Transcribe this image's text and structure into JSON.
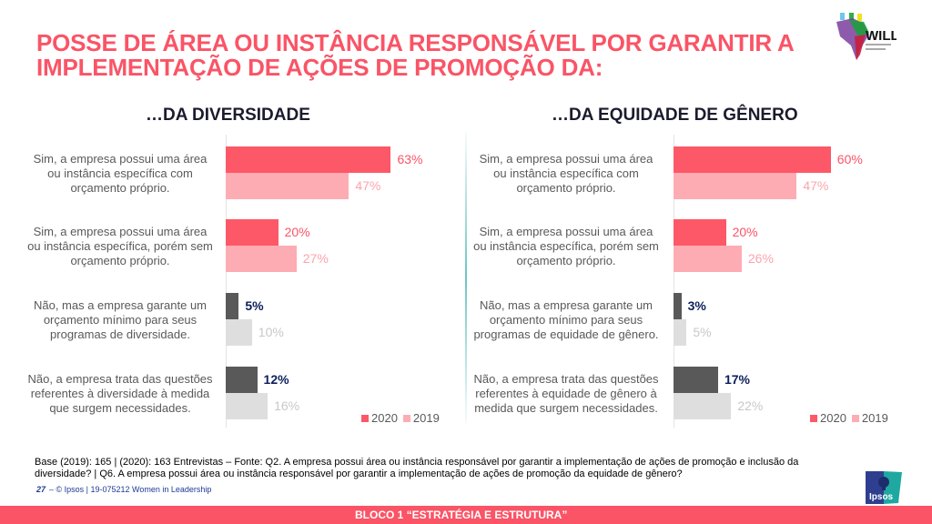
{
  "header": {
    "title_line1": "POSSE DE ÁREA OU INSTÂNCIA RESPONSÁVEL POR GARANTIR A",
    "title_line2": "IMPLEMENTAÇÃO DE AÇÕES DE PROMOÇÃO DA:",
    "logo_text": "WILL"
  },
  "colors": {
    "accent": "#fa5466",
    "bar_2020_pos": "#fd5867",
    "bar_2019_pos": "#feacb3",
    "bar_2020_neg": "#595959",
    "bar_2019_neg": "#dedede",
    "label_2020_pos": "#fa5466",
    "label_2019_pos": "#fca3ad",
    "label_2020_neg": "#0d1f5c",
    "label_2019_neg": "#c8c8c8"
  },
  "chart_data": [
    {
      "type": "bar",
      "orientation": "horizontal",
      "title": "…DA DIVERSIDADE",
      "categories": [
        "Sim, a empresa possui uma área ou instância específica com orçamento próprio.",
        "Sim, a empresa possui uma área ou instância específica, porém sem orçamento próprio.",
        "Não, mas a empresa garante um orçamento mínimo para seus programas de diversidade.",
        "Não, a empresa trata das questões referentes à diversidade à medida que surgem necessidades."
      ],
      "category_lines": [
        [
          "Sim, a empresa possui uma área",
          "ou instância específica com",
          "orçamento próprio."
        ],
        [
          "Sim, a empresa possui uma área",
          "ou instância específica, porém sem",
          "orçamento próprio."
        ],
        [
          "Não, mas a empresa garante um",
          "orçamento mínimo para seus",
          "programas de diversidade."
        ],
        [
          "Não, a empresa trata das questões",
          "referentes à diversidade à medida",
          "que surgem necessidades."
        ]
      ],
      "series": [
        {
          "name": "2020",
          "values": [
            63,
            20,
            5,
            12
          ],
          "labels": [
            "63%",
            "20%",
            "5%",
            "12%"
          ]
        },
        {
          "name": "2019",
          "values": [
            47,
            27,
            10,
            16
          ],
          "labels": [
            "47%",
            "27%",
            "10%",
            "16%"
          ]
        }
      ],
      "xlim": [
        0,
        100
      ],
      "legend": [
        "2020",
        "2019"
      ],
      "legend_position": "bottom-right",
      "grid": false
    },
    {
      "type": "bar",
      "orientation": "horizontal",
      "title": "…DA EQUIDADE DE GÊNERO",
      "categories": [
        "Sim, a empresa possui uma área ou instância específica com orçamento próprio.",
        "Sim, a empresa possui uma área ou instância específica, porém sem orçamento próprio.",
        "Não, mas a empresa garante um orçamento mínimo para seus programas de equidade de gênero.",
        "Não, a empresa trata das questões referentes à equidade de gênero à medida que surgem necessidades."
      ],
      "category_lines": [
        [
          "Sim, a empresa possui uma área",
          "ou instância específica com",
          "orçamento próprio."
        ],
        [
          "Sim, a empresa possui uma área",
          "ou instância específica, porém sem",
          "orçamento próprio."
        ],
        [
          "Não, mas a empresa garante um",
          "orçamento mínimo para seus",
          "programas de equidade de gênero."
        ],
        [
          "Não, a empresa trata das questões",
          "referentes à equidade de gênero à",
          "medida que surgem necessidades."
        ]
      ],
      "series": [
        {
          "name": "2020",
          "values": [
            60,
            20,
            3,
            17
          ],
          "labels": [
            "60%",
            "20%",
            "3%",
            "17%"
          ]
        },
        {
          "name": "2019",
          "values": [
            47,
            26,
            5,
            22
          ],
          "labels": [
            "47%",
            "26%",
            "5%",
            "22%"
          ]
        }
      ],
      "xlim": [
        0,
        100
      ],
      "legend": [
        "2020",
        "2019"
      ],
      "legend_position": "bottom-right",
      "grid": false
    }
  ],
  "footer": {
    "note_line1": "Base (2019): 165 | (2020): 163 Entrevistas – Fonte: Q2. A empresa possui área ou instância responsável por garantir a implementação de ações de promoção e inclusão da",
    "note_line2": "diversidade? | Q6. A empresa possui área ou instância responsável por garantir a implementação de ações de promoção da equidade de gênero?",
    "page_number": "27",
    "page_text": "– © Ipsos | 19-075212 Women in Leadership",
    "ipsos_logo": "Ipsos",
    "section_banner": "BLOCO 1 “ESTRATÉGIA E ESTRUTURA”"
  }
}
